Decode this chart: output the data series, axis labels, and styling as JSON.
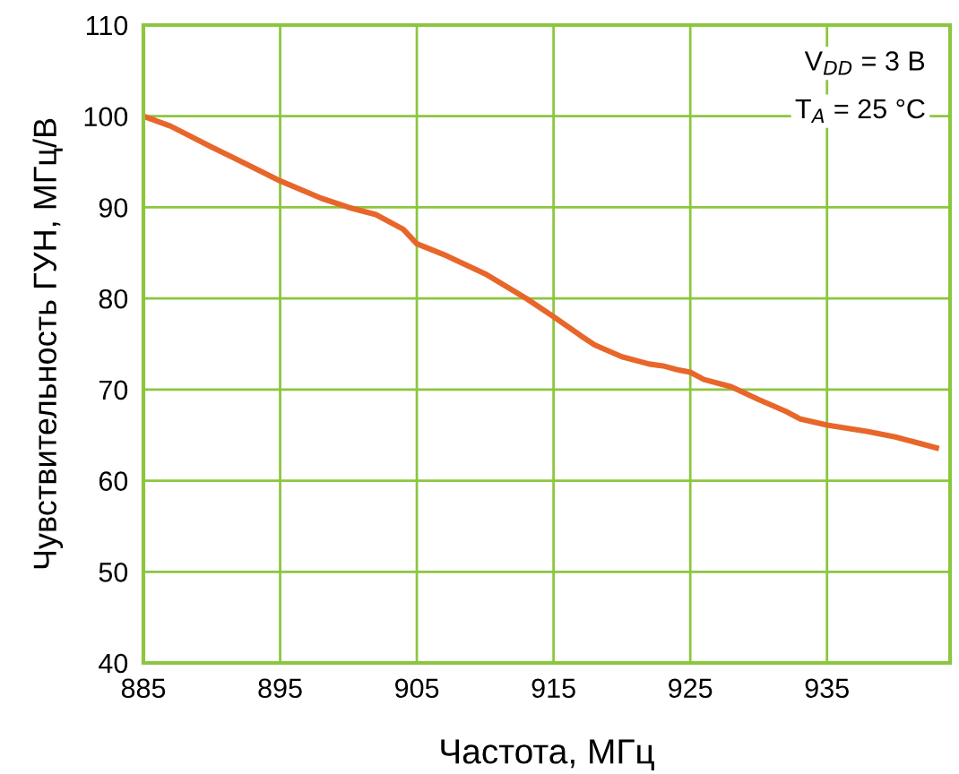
{
  "chart_data": {
    "type": "line",
    "xlabel": "Частота, МГц",
    "ylabel": "Чувствительность ГУН, МГц/В",
    "x": [
      885,
      887,
      890,
      893,
      895,
      898,
      900,
      902,
      904,
      905,
      907,
      910,
      913,
      915,
      917,
      918,
      920,
      922,
      923,
      924,
      925,
      926,
      928,
      930,
      932,
      933,
      935,
      938,
      940,
      943
    ],
    "series": [
      {
        "color": "#e8662a",
        "values": [
          100,
          98.9,
          96.6,
          94.4,
          92.9,
          91.0,
          90.0,
          89.2,
          87.6,
          86.0,
          84.8,
          82.7,
          80.0,
          78.0,
          75.9,
          74.9,
          73.6,
          72.8,
          72.6,
          72.2,
          71.9,
          71.1,
          70.3,
          68.9,
          67.6,
          66.8,
          66.1,
          65.4,
          64.8,
          63.6
        ]
      }
    ],
    "xlim": [
      885,
      944
    ],
    "xticks": [
      885,
      895,
      905,
      915,
      925,
      935
    ],
    "ylim": [
      40,
      110
    ],
    "yticks": [
      40,
      50,
      60,
      70,
      80,
      90,
      100,
      110
    ],
    "grid": true,
    "annotations": [
      "V$_{DD}$ = 3 В",
      "T$_{A}$ = 25 °C"
    ]
  }
}
